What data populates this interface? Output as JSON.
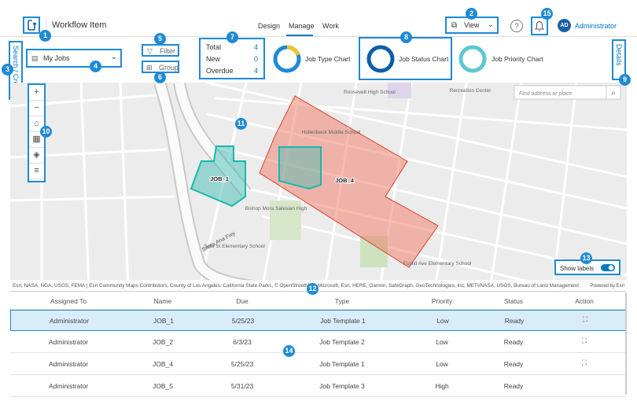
{
  "header": {
    "title": "Workflow Item",
    "tabs": [
      "Design",
      "Manage",
      "Work"
    ],
    "view": "View",
    "user_initials": "AD",
    "user_name": "Administrator"
  },
  "toolbar": {
    "search_create": "Search / Create",
    "job_query": "My Jobs",
    "filter": "Filter",
    "group": "Group",
    "stats": [
      {
        "label": "Total",
        "value": 4
      },
      {
        "label": "New",
        "value": 0
      },
      {
        "label": "Overdue",
        "value": 4
      }
    ],
    "charts": [
      "Job Type Chart",
      "Job Status Chart",
      "Job Priority Chart"
    ],
    "details": "Details"
  },
  "map": {
    "search_placeholder": "Find address or place",
    "places": [
      "Roosevelt High School",
      "Recreation Center",
      "Hollenbeck Middle School",
      "Bishop Mora Salesian High",
      "Soto St Elementary School",
      "Euclid Ave Elementary School"
    ],
    "freeway": "Santa Ana Fwy",
    "jobs": [
      "JOB_1",
      "JOB_4"
    ],
    "show_labels": "Show labels",
    "attribution": "Esri, NASA, NGA, USGS, FEMA | Esri Community Maps Contributors, County of Los Angeles, California State Parks, © OpenStreetMap, Microsoft, Esri, HERE, Garmin, SafeGraph, GeoTechnologies, Inc, METI/NASA, USGS, Bureau of Land Management",
    "powered_by": "Powered by Esri"
  },
  "table": {
    "columns": [
      "Assigned To",
      "Name",
      "Due",
      "Type",
      "Priority",
      "Status",
      "Action"
    ],
    "rows": [
      [
        "Administrator",
        "JOB_1",
        "5/25/23",
        "Job Template 1",
        "Low",
        "Ready"
      ],
      [
        "Administrator",
        "JOB_2",
        "6/3/23",
        "Job Template 2",
        "Low",
        "Ready"
      ],
      [
        "Administrator",
        "JOB_4",
        "5/25/23",
        "Job Template 1",
        "Low",
        "Ready"
      ],
      [
        "Administrator",
        "JOB_5",
        "5/31/23",
        "Job Template 3",
        "High",
        "Ready"
      ]
    ]
  },
  "callouts": [
    1,
    2,
    3,
    4,
    5,
    6,
    7,
    8,
    9,
    10,
    11,
    12,
    13,
    14,
    15
  ]
}
